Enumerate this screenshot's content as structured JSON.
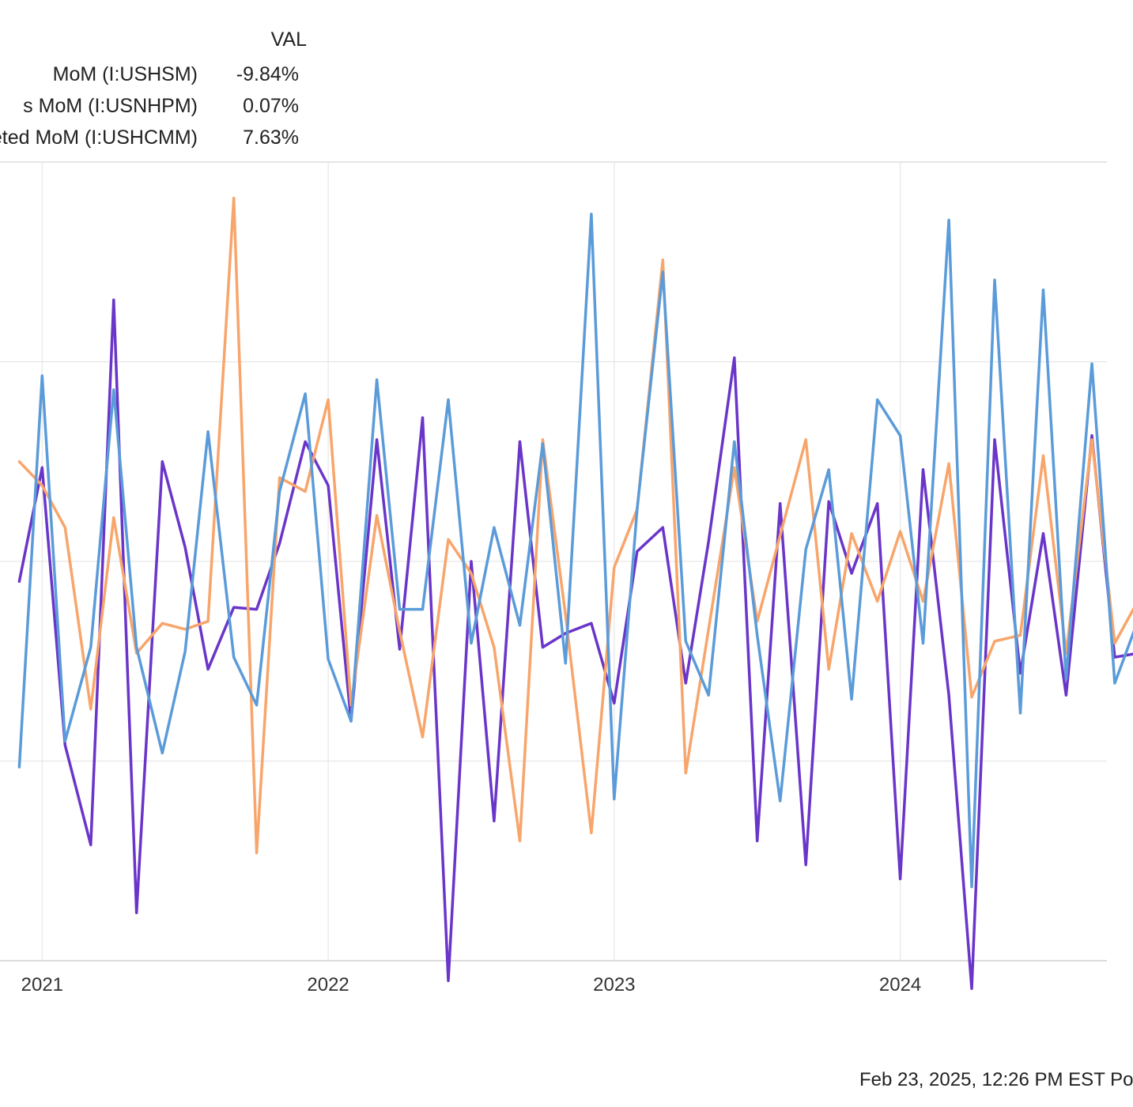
{
  "legend": {
    "header": "VAL",
    "rows": [
      {
        "name": "MoM (I:USHSM)",
        "value": "-9.84%",
        "color": "#6a35c9"
      },
      {
        "name": "s MoM (I:USNHPM)",
        "value": "0.07%",
        "color": "#f8a56b"
      },
      {
        "name": "eted MoM (I:USHCMM)",
        "value": "7.63%",
        "color": "#5b9bd9"
      }
    ]
  },
  "footer": {
    "text": "Feb 23, 2025, 12:26 PM EST Po"
  },
  "chart_data": {
    "type": "line",
    "x_ticks": [
      2021,
      2022,
      2023,
      2024
    ],
    "x_tick_labels": [
      "2021",
      "2022",
      "2023",
      "2024"
    ],
    "xlim": [
      2020.93,
      2024.8
    ],
    "ylim": [
      -20,
      20
    ],
    "grid": true,
    "legend_position": "top-left",
    "x": [
      2020.92,
      2021.0,
      2021.08,
      2021.17,
      2021.25,
      2021.33,
      2021.42,
      2021.5,
      2021.58,
      2021.67,
      2021.75,
      2021.83,
      2021.92,
      2022.0,
      2022.08,
      2022.17,
      2022.25,
      2022.33,
      2022.42,
      2022.5,
      2022.58,
      2022.67,
      2022.75,
      2022.83,
      2022.92,
      2023.0,
      2023.08,
      2023.17,
      2023.25,
      2023.33,
      2023.42,
      2023.5,
      2023.58,
      2023.67,
      2023.75,
      2023.83,
      2023.92,
      2024.0,
      2024.08,
      2024.17,
      2024.25,
      2024.33,
      2024.42,
      2024.5,
      2024.58,
      2024.67,
      2024.75,
      2024.83
    ],
    "series": [
      {
        "name": "MoM (I:USHSM)",
        "color": "#6a35c9",
        "values": [
          -1,
          4.7,
          -9.2,
          -14.2,
          13.1,
          -17.6,
          5,
          0.7,
          -5.4,
          -2.3,
          -2.4,
          0.9,
          6,
          3.8,
          -8,
          6.1,
          -4.4,
          7.2,
          -21,
          0,
          -13,
          6,
          -4.3,
          -3.6,
          -3.1,
          -7.1,
          0.5,
          1.7,
          -6.1,
          1,
          10.2,
          -14,
          2.9,
          -15.2,
          3,
          -0.6,
          2.9,
          -15.9,
          4.6,
          -6.7,
          -21.4,
          6.1,
          -5.6,
          1.4,
          -6.7,
          6.3,
          -4.8,
          -4.6
        ],
        "color_key": "purple"
      },
      {
        "name": "s MoM (I:USNHPM)",
        "color": "#f8a56b",
        "values": [
          5,
          3.8,
          1.7,
          -7.4,
          2.2,
          -4.6,
          -3.1,
          -3.4,
          -3,
          18.2,
          -14.6,
          4.2,
          3.5,
          8.1,
          -7.2,
          2.3,
          -3.5,
          -8.8,
          1.1,
          -0.6,
          -4.3,
          -14,
          6.1,
          -2.7,
          -13.6,
          -0.3,
          2.6,
          15.1,
          -10.6,
          -3.4,
          4.7,
          -3,
          1.3,
          6.1,
          -5.4,
          1.4,
          -2,
          1.5,
          -2,
          4.9,
          -6.8,
          -4,
          -3.7,
          5.3,
          -4.6,
          6.1,
          -4.1,
          -2
        ]
      },
      {
        "name": "eted MoM (I:USHCMM)",
        "color": "#5b9bd9",
        "values": [
          -10.3,
          9.3,
          -9,
          -4.3,
          8.6,
          -4.3,
          -9.6,
          -4.5,
          6.5,
          -4.8,
          -7.2,
          3.5,
          8.4,
          -4.9,
          -8,
          9.1,
          -2.4,
          -2.4,
          8.1,
          -4.1,
          1.7,
          -3.2,
          5.9,
          -5.1,
          17.4,
          -11.9,
          2.6,
          14.5,
          -4,
          -6.7,
          6,
          -3.7,
          -12,
          0.6,
          4.6,
          -6.9,
          8.1,
          6.3,
          -4.1,
          17.1,
          -16.3,
          14.1,
          -7.6,
          13.6,
          -5.9,
          9.9,
          -6.1,
          -3
        ]
      }
    ]
  }
}
